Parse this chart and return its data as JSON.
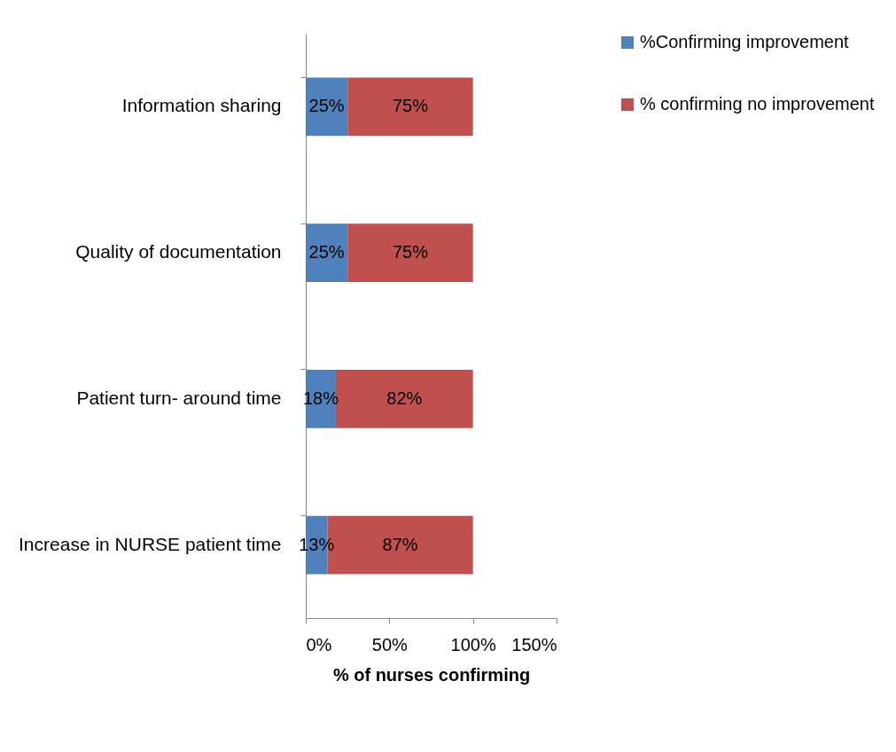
{
  "chart_data": {
    "type": "bar",
    "orientation": "horizontal",
    "stacked": true,
    "categories": [
      "Information sharing",
      "Quality of documentation",
      "Patient turn- around time",
      "Increase in NURSE patient time"
    ],
    "series": [
      {
        "name": "%Confirming improvement",
        "color": "#4f81bd",
        "values": [
          25,
          25,
          18,
          13
        ],
        "value_labels": [
          "25%",
          "25%",
          "18%",
          "13%"
        ]
      },
      {
        "name": "% confirming no improvement",
        "color": "#c0504d",
        "values": [
          75,
          75,
          82,
          87
        ],
        "value_labels": [
          "75%",
          "75%",
          "82%",
          "87%"
        ]
      }
    ],
    "xlabel": "% of nurses confirming",
    "xlim": [
      0,
      150
    ],
    "xticks": [
      {
        "value": 0,
        "label": "0%"
      },
      {
        "value": 50,
        "label": "50%"
      },
      {
        "value": 100,
        "label": "100%"
      },
      {
        "value": 150,
        "label": "150%"
      }
    ],
    "legend": "right",
    "grid": false
  }
}
